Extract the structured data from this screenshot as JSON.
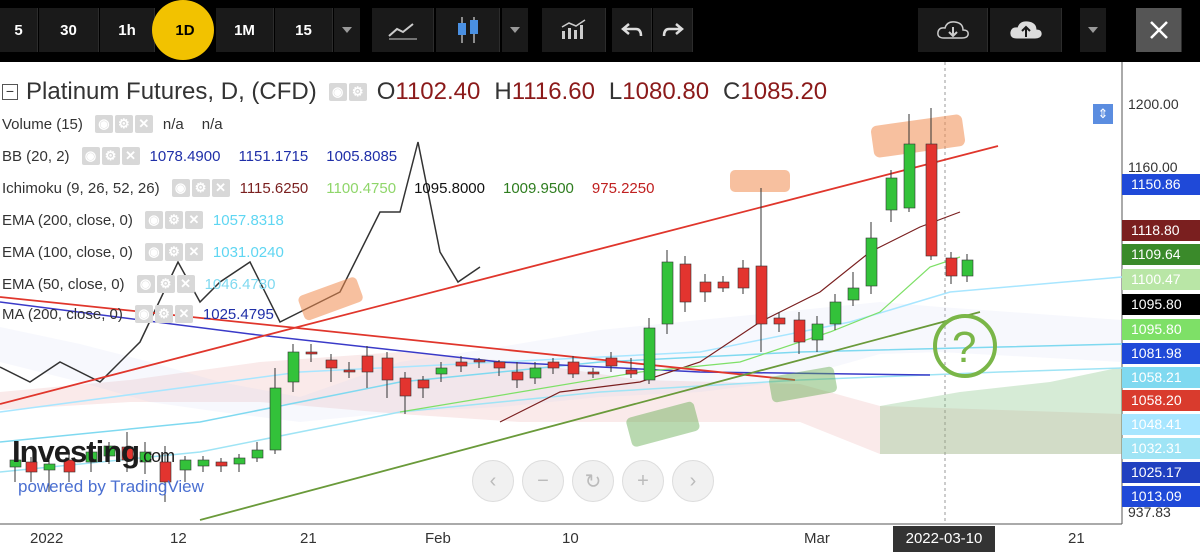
{
  "toolbar": {
    "timeframes": [
      "5",
      "30",
      "1h",
      "1D",
      "1M",
      "15"
    ],
    "active_timeframe": "1D"
  },
  "legend": {
    "title": "Platinum Futures, D, (CFD)",
    "ohlc": {
      "o_label": "O",
      "o": "1102.40",
      "h_label": "H",
      "h": "1116.60",
      "l_label": "L",
      "l": "1080.80",
      "c_label": "C",
      "c": "1085.20"
    },
    "volume": {
      "label": "Volume (15)",
      "v1": "n/a",
      "v2": "n/a"
    },
    "bb": {
      "label": "BB (20, 2)",
      "v1": "1078.4900",
      "v2": "1151.1715",
      "v3": "1005.8085"
    },
    "ichimoku": {
      "label": "Ichimoku (9, 26, 52, 26)",
      "v1": "1115.6250",
      "v2": "1100.4750",
      "v3": "1095.8000",
      "v4": "1009.9500",
      "v5": "975.2250"
    },
    "ema200": {
      "label": "EMA (200, close, 0)",
      "v": "1057.8318"
    },
    "ema100": {
      "label": "EMA (100, close, 0)",
      "v": "1031.0240"
    },
    "ema50": {
      "label": "EMA (50, close, 0)",
      "v": "1046.4780"
    },
    "ma200": {
      "label": "MA (200, close, 0)",
      "v": "1025.4795"
    }
  },
  "price_axis": {
    "ticks": [
      "1200.00",
      "1160.00"
    ],
    "bottom_tick": "937.83",
    "tags": [
      {
        "text": "1150.86",
        "color": "#1f49d8"
      },
      {
        "text": "1118.80",
        "color": "#7a1f1f"
      },
      {
        "text": "1109.64",
        "color": "#3a8a2a"
      },
      {
        "text": "1100.47",
        "color": "#b9e6a6"
      },
      {
        "text": "1095.80",
        "color": "#000000"
      },
      {
        "text": "1095.80",
        "color": "#7ee067"
      },
      {
        "text": "1081.98",
        "color": "#1f49d8"
      },
      {
        "text": "1058.21",
        "color": "#7fd9f0"
      },
      {
        "text": "1058.20",
        "color": "#d93b2d"
      },
      {
        "text": "1048.41",
        "color": "#a8e6ff"
      },
      {
        "text": "1032.31",
        "color": "#9fe4f5"
      },
      {
        "text": "1025.17",
        "color": "#2040c0"
      },
      {
        "text": "1013.09",
        "color": "#1f49d8"
      }
    ]
  },
  "time_axis": {
    "ticks": [
      "2022",
      "12",
      "21",
      "Feb",
      "10",
      "Mar",
      "21"
    ],
    "cursor_date": "2022-03-10"
  },
  "watermark": {
    "brand": "Investing",
    "suffix": ".com",
    "powered": "powered by TradingView"
  },
  "annotation": {
    "symbol": "?"
  },
  "colors": {
    "up": "#33c23a",
    "down": "#e3342f",
    "trend_red": "#e0362c",
    "trend_green": "#6a9a3a"
  }
}
